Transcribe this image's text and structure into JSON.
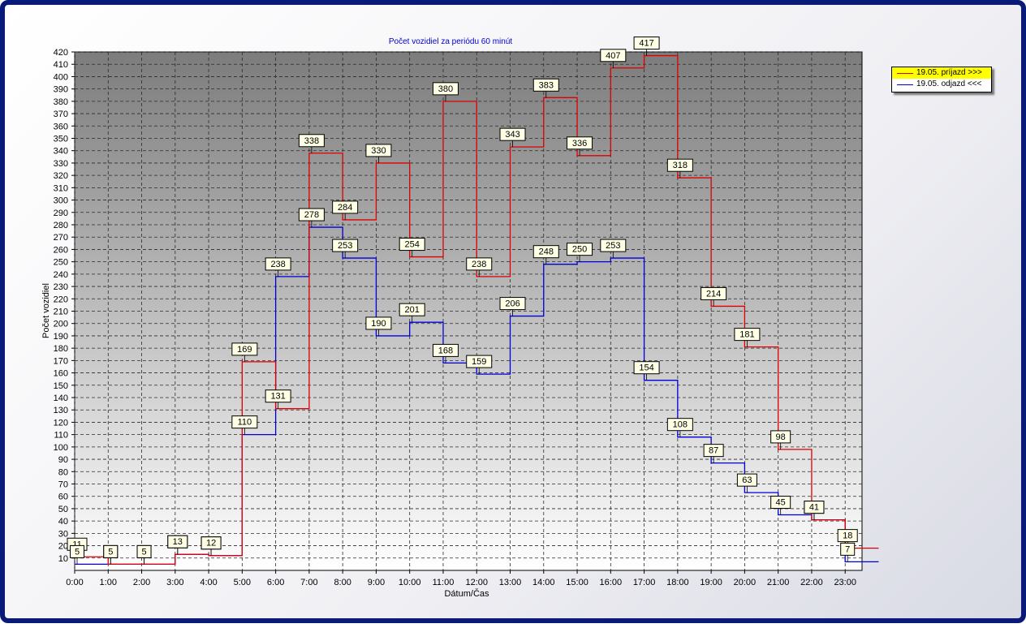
{
  "chart_data": {
    "type": "line",
    "step": true,
    "title": "Počet vozidiel za periódu 60 minút",
    "xlabel": "Dátum/Čas",
    "ylabel": "Počet vozidiel",
    "ylim": [
      0,
      420
    ],
    "yticks": [
      10,
      20,
      30,
      40,
      50,
      60,
      70,
      80,
      90,
      100,
      110,
      120,
      130,
      140,
      150,
      160,
      170,
      180,
      190,
      200,
      210,
      220,
      230,
      240,
      250,
      260,
      270,
      280,
      290,
      300,
      310,
      320,
      330,
      340,
      350,
      360,
      370,
      380,
      390,
      400,
      410,
      420
    ],
    "categories": [
      "0:00",
      "1:00",
      "2:00",
      "3:00",
      "4:00",
      "5:00",
      "6:00",
      "7:00",
      "8:00",
      "9:00",
      "10:00",
      "11:00",
      "12:00",
      "13:00",
      "14:00",
      "15:00",
      "16:00",
      "17:00",
      "18:00",
      "19:00",
      "20:00",
      "21:00",
      "22:00",
      "23:00"
    ],
    "grid": true,
    "legend_position": "top-right",
    "series": [
      {
        "name": "19.05.  príjazd >>>",
        "color": "#e00000",
        "values": [
          11,
          5,
          5,
          13,
          12,
          169,
          131,
          338,
          284,
          330,
          254,
          380,
          238,
          343,
          383,
          336,
          407,
          417,
          318,
          214,
          181,
          98,
          41,
          18
        ]
      },
      {
        "name": "19.05.  odjazd <<<",
        "color": "#0000dd",
        "values": [
          5,
          5,
          5,
          13,
          12,
          110,
          238,
          278,
          253,
          190,
          201,
          168,
          159,
          206,
          248,
          250,
          253,
          154,
          108,
          87,
          63,
          45,
          41,
          7
        ]
      }
    ]
  },
  "legend": {
    "selected_color": "#ffff00",
    "items": [
      {
        "label": "19.05.  príjazd >>>",
        "color": "#e00000"
      },
      {
        "label": "19.05.  odjazd <<<",
        "color": "#0000dd"
      }
    ]
  }
}
